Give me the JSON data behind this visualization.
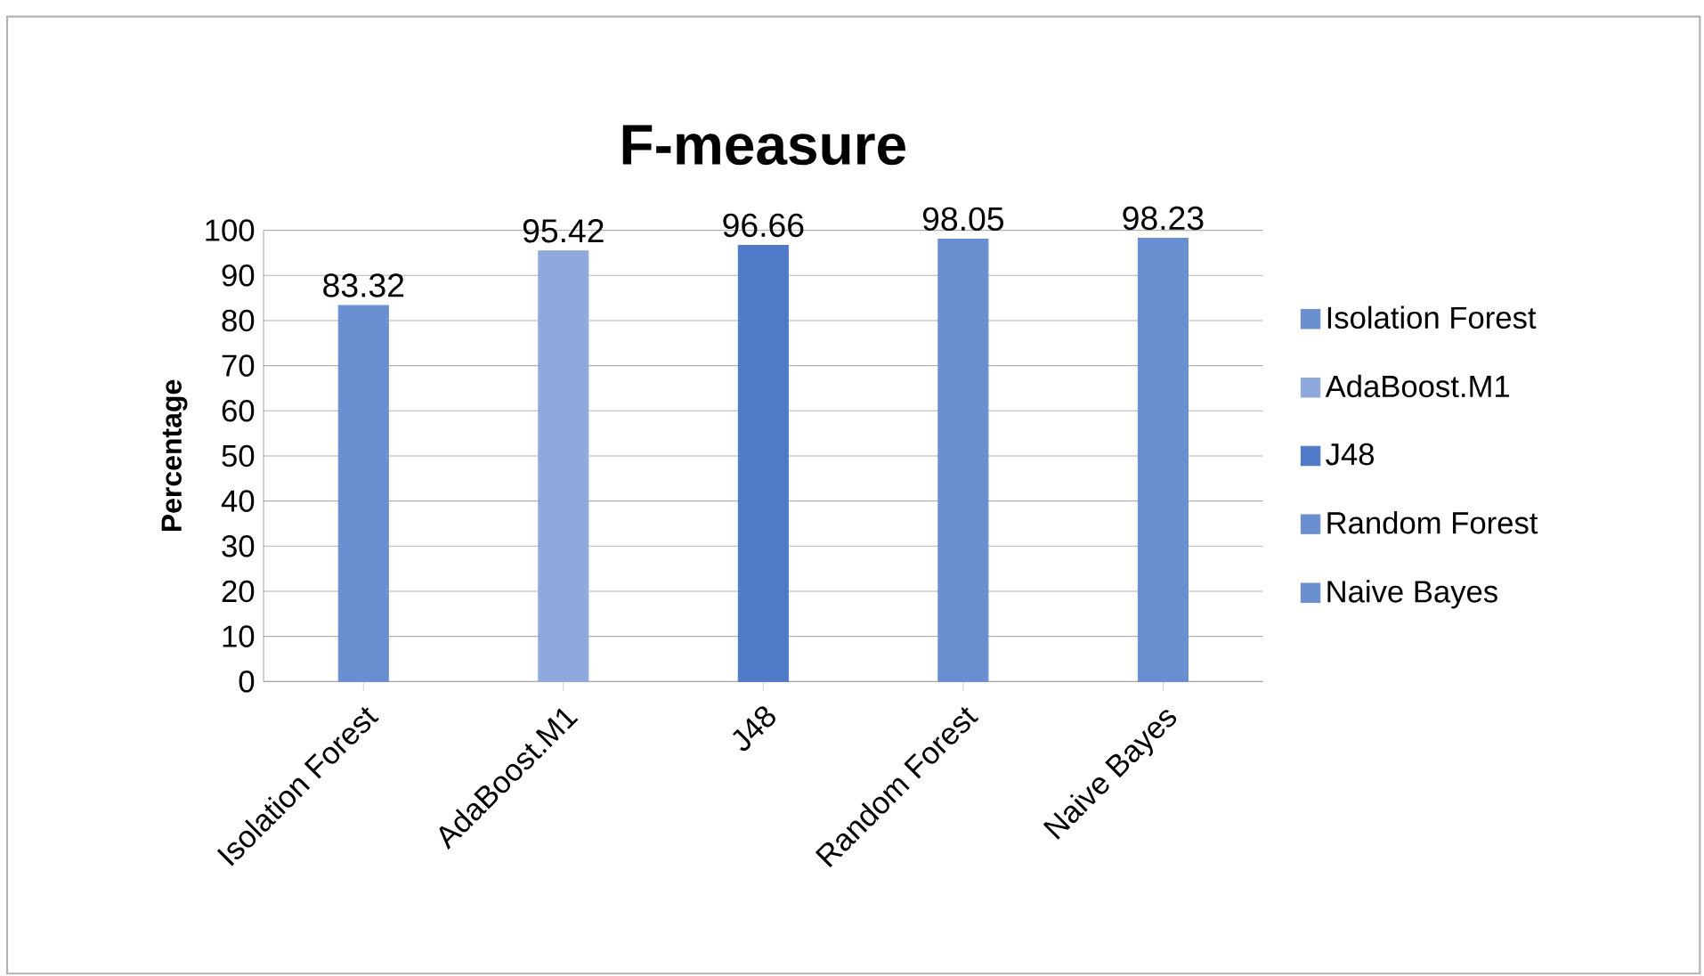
{
  "chart_data": {
    "type": "bar",
    "title": "F-measure",
    "ylabel": "Percentage",
    "categories": [
      "Isolation Forest",
      "AdaBoost.M1",
      "J48",
      "Random Forest",
      "Naive Bayes"
    ],
    "series": [
      {
        "name": "Isolation Forest",
        "color": "#6a8fd0",
        "values": [
          83.32,
          null,
          null,
          null,
          null
        ]
      },
      {
        "name": "AdaBoost.M1",
        "color": "#8fa9dc",
        "values": [
          null,
          95.42,
          null,
          null,
          null
        ]
      },
      {
        "name": "J48",
        "color": "#4f7ac8",
        "values": [
          null,
          null,
          96.66,
          null,
          null
        ]
      },
      {
        "name": "Random Forest",
        "color": "#6a8fd0",
        "values": [
          null,
          null,
          null,
          98.05,
          null
        ]
      },
      {
        "name": "Naive Bayes",
        "color": "#6a8fd0",
        "values": [
          null,
          null,
          null,
          null,
          98.23
        ]
      }
    ],
    "ylim": [
      0,
      100
    ],
    "yticks": [
      0,
      10,
      20,
      30,
      40,
      50,
      60,
      70,
      80,
      90,
      100
    ],
    "grid": "y",
    "legend": "right",
    "data_labels": true
  }
}
